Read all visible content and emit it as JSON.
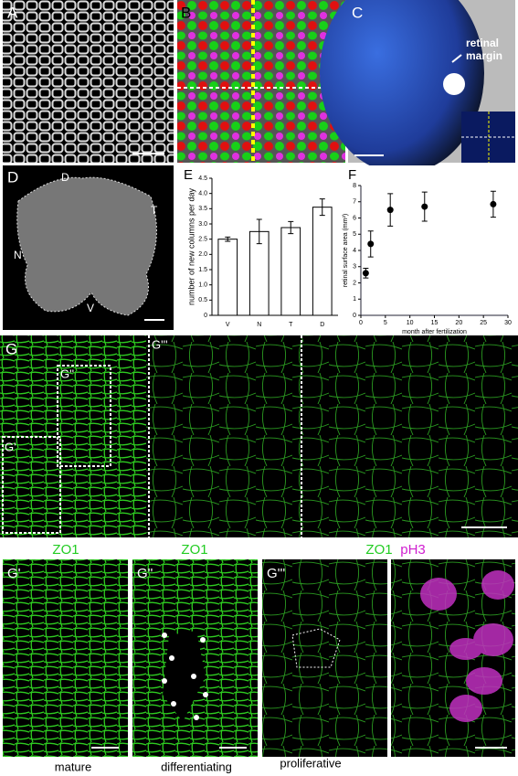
{
  "top_panel_labels": [
    "A",
    "B",
    "C",
    "D"
  ],
  "annotation": [
    "retinal",
    "margin"
  ],
  "orientation_labels": [
    "D",
    "T",
    "N",
    "V"
  ],
  "g_labels": [
    "G",
    "G''",
    "G'",
    "G'''"
  ],
  "stain_labels": [
    "ZO1",
    "ZO1",
    "ZO1",
    "pH3"
  ],
  "bottom_panel_labels": [
    "G'",
    "G''",
    "G'''"
  ],
  "captions": [
    "mature",
    "differentiating",
    "proliferative"
  ],
  "chart_data": [
    {
      "type": "bar",
      "label": "E",
      "ylabel": "number of new columns per day",
      "categories": [
        "V",
        "N",
        "T",
        "D"
      ],
      "values": [
        2.5,
        2.75,
        2.88,
        3.55
      ],
      "errors": [
        0.07,
        0.4,
        0.2,
        0.27
      ],
      "color": "#ffffff",
      "ylim": [
        0,
        4.5
      ],
      "yticks": [
        0,
        0.5,
        {
          "value": 1,
          "label": "1.0"
        },
        1.5,
        {
          "value": 2,
          "label": "2.0"
        },
        2.5,
        {
          "value": 3,
          "label": "3.0"
        },
        3.5,
        {
          "value": 4,
          "label": "4.0"
        },
        4.5
      ]
    },
    {
      "type": "scatter",
      "label": "F",
      "ylabel": "retinal surface area (mm²)",
      "xlabel": "month after fertilization",
      "x": [
        1,
        2,
        6,
        13,
        27
      ],
      "values": [
        2.6,
        4.4,
        6.5,
        6.7,
        6.85
      ],
      "errors": [
        0.3,
        0.8,
        1.0,
        0.9,
        0.8
      ],
      "color": "#000000",
      "xlim": [
        0,
        30
      ],
      "xticks": [
        0,
        5,
        10,
        15,
        20,
        25,
        30
      ],
      "ylim": [
        0,
        8
      ],
      "yticks": [
        0,
        1,
        2,
        3,
        4,
        5,
        6,
        7,
        8
      ]
    }
  ]
}
